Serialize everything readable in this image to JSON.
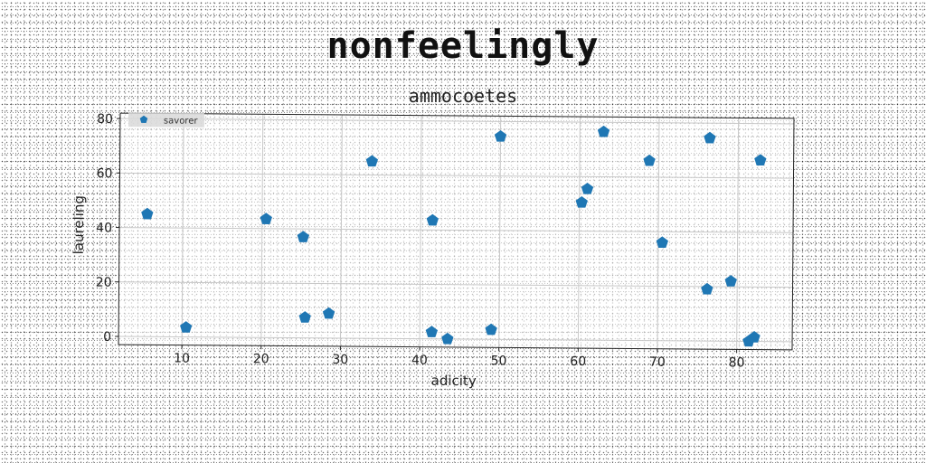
{
  "chart_data": {
    "type": "scatter",
    "title": "nonfeelingly",
    "subtitle": "ammocoetes",
    "xlabel": "adicity",
    "ylabel": "laureling",
    "xlim": [
      2,
      87
    ],
    "ylim": [
      -3,
      82
    ],
    "xticks": [
      10,
      20,
      30,
      40,
      50,
      60,
      70,
      80
    ],
    "yticks": [
      0,
      20,
      40,
      60,
      80
    ],
    "grid": true,
    "legend_position": "top-left",
    "series": [
      {
        "name": "savorer",
        "color": "#1f77b4",
        "marker": "pentagon",
        "x": [
          5.5,
          10.5,
          20.5,
          25.2,
          25.5,
          28.5,
          33.8,
          41.5,
          41.5,
          43.5,
          49,
          50,
          60.3,
          61,
          63,
          68.8,
          70.5,
          76.2,
          76.4,
          79.2,
          81.5,
          82.2,
          82.8
        ],
        "y": [
          45,
          3.5,
          43.5,
          37,
          7.5,
          9,
          65,
          43.5,
          2.5,
          0,
          3.5,
          74.5,
          50.5,
          55.5,
          76.5,
          66,
          36,
          19,
          74.5,
          22,
          0,
          1.5,
          66.5
        ]
      }
    ]
  }
}
